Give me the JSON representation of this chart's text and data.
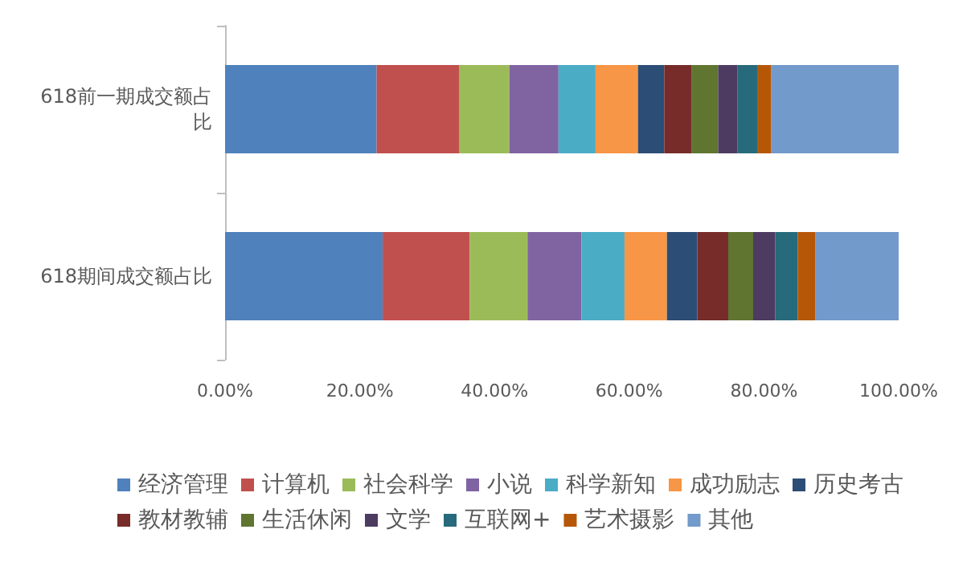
{
  "chart_data": {
    "type": "bar",
    "orientation": "horizontal",
    "stacked": true,
    "categories": [
      "618前一期成交额占比",
      "618期间成交额占比"
    ],
    "series": [
      {
        "name": "经济管理",
        "color": "#4f81bd",
        "values": [
          22.5,
          23.4
        ]
      },
      {
        "name": "计算机",
        "color": "#c0504d",
        "values": [
          12.3,
          12.9
        ]
      },
      {
        "name": "社会科学",
        "color": "#9bbb59",
        "values": [
          7.4,
          8.6
        ]
      },
      {
        "name": "小说",
        "color": "#8064a2",
        "values": [
          7.3,
          8.0
        ]
      },
      {
        "name": "科学新知",
        "color": "#4bacc6",
        "values": [
          5.5,
          6.4
        ]
      },
      {
        "name": "成功励志",
        "color": "#f79646",
        "values": [
          6.3,
          6.3
        ]
      },
      {
        "name": "历史考古",
        "color": "#2c4d75",
        "values": [
          3.9,
          4.5
        ]
      },
      {
        "name": "教材教辅",
        "color": "#772c2a",
        "values": [
          4.1,
          4.6
        ]
      },
      {
        "name": "生活休闲",
        "color": "#5f7530",
        "values": [
          3.9,
          3.7
        ]
      },
      {
        "name": "文学",
        "color": "#4d3b62",
        "values": [
          2.9,
          3.3
        ]
      },
      {
        "name": "互联网+",
        "color": "#276a7c",
        "values": [
          2.9,
          3.3
        ]
      },
      {
        "name": "艺术摄影",
        "color": "#b65708",
        "values": [
          2.1,
          2.6
        ]
      },
      {
        "name": "其他",
        "color": "#729aca",
        "values": [
          18.9,
          12.4
        ]
      }
    ],
    "xlim": [
      0,
      100
    ],
    "xticks": [
      {
        "value": 0,
        "label": "0.00%"
      },
      {
        "value": 20,
        "label": "20.00%"
      },
      {
        "value": 40,
        "label": "40.00%"
      },
      {
        "value": 60,
        "label": "60.00%"
      },
      {
        "value": 80,
        "label": "80.00%"
      },
      {
        "value": 100,
        "label": "100.00%"
      }
    ],
    "grid": false,
    "legend": "bottom"
  }
}
